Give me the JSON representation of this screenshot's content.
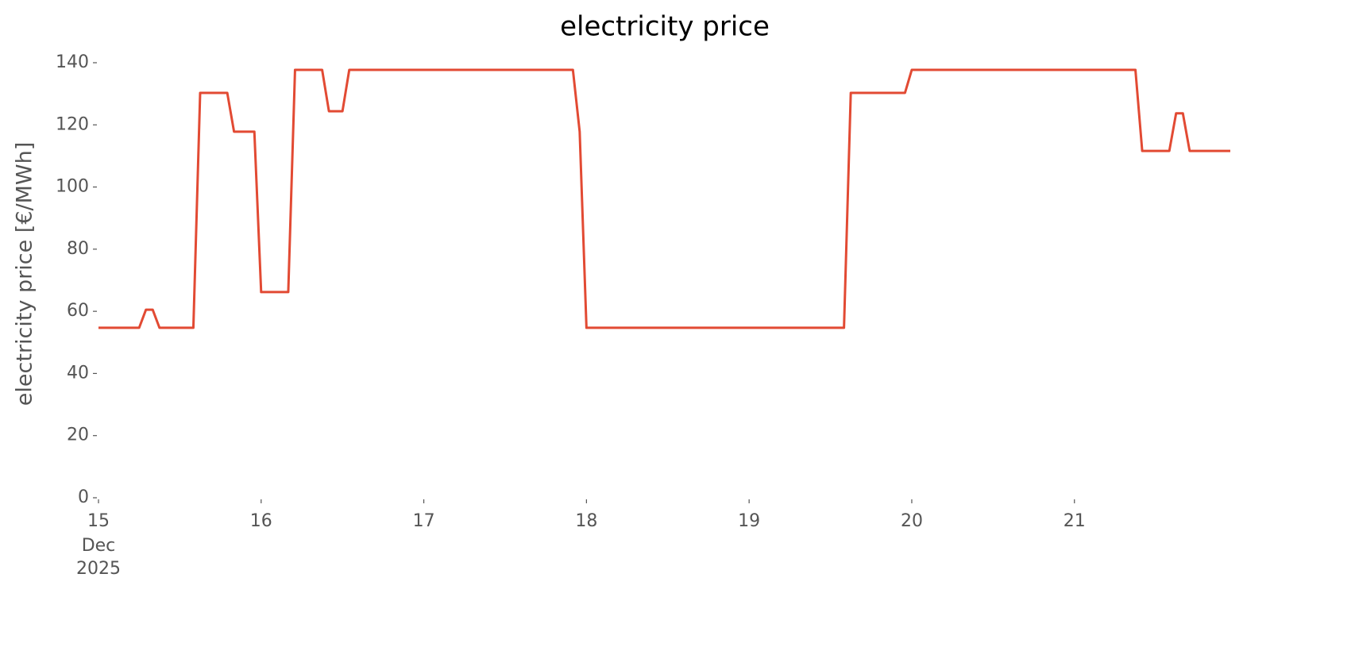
{
  "chart_data": {
    "type": "line",
    "title": "electricity price",
    "y_label": "electricity price [€/MWh]",
    "x": [
      15,
      15.25,
      15.2917,
      15.3333,
      15.375,
      15.5833,
      15.625,
      15.7917,
      15.8333,
      15.9583,
      16,
      16.1667,
      16.2083,
      16.375,
      16.4167,
      16.5,
      16.5417,
      17.9167,
      17.9583,
      18,
      19.5833,
      19.625,
      19.9583,
      20,
      21.375,
      21.4167,
      21.5833,
      21.625,
      21.6667,
      21.7083,
      21.9583
    ],
    "series": [
      {
        "name": "electricity price",
        "color": "#E24A33",
        "values": [
          54.7,
          54.7,
          60.5,
          60.5,
          54.7,
          54.7,
          130.3,
          130.3,
          117.8,
          117.8,
          66.2,
          66.2,
          137.7,
          137.7,
          124.4,
          124.4,
          137.7,
          137.7,
          117.8,
          54.7,
          54.7,
          130.3,
          130.3,
          137.7,
          137.7,
          111.6,
          111.6,
          123.7,
          123.7,
          111.6,
          111.6
        ]
      }
    ],
    "xlim": [
      15,
      21.9583
    ],
    "xticks": [
      15,
      16,
      17,
      18,
      19,
      20,
      21
    ],
    "x_first_tick_extra_lines": [
      "Dec",
      "2025"
    ],
    "ylim": [
      0,
      140
    ],
    "yticks": [
      0,
      20,
      40,
      60,
      80,
      100,
      120,
      140
    ],
    "grid": false
  }
}
